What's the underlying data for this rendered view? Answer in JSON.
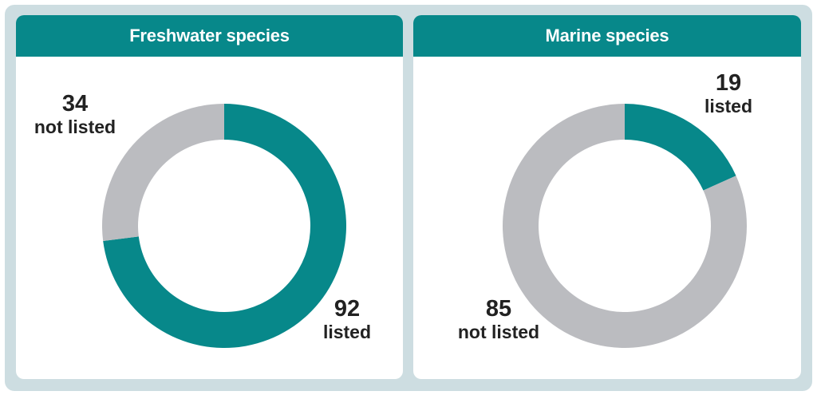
{
  "colors": {
    "frame": "#cddde1",
    "header": "#07888a",
    "listed": "#07888a",
    "not_listed": "#bbbcc0",
    "text": "#222222"
  },
  "panels": [
    {
      "title": "Freshwater species",
      "labels": [
        {
          "value": "34",
          "text": "not listed"
        },
        {
          "value": "92",
          "text": "listed"
        }
      ]
    },
    {
      "title": "Marine species",
      "labels": [
        {
          "value": "19",
          "text": "listed"
        },
        {
          "value": "85",
          "text": "not listed"
        }
      ]
    }
  ],
  "chart_data": [
    {
      "type": "pie",
      "variant": "donut",
      "title": "Freshwater species",
      "categories": [
        "listed",
        "not listed"
      ],
      "values": [
        92,
        34
      ],
      "colors": [
        "#07888a",
        "#bbbcc0"
      ]
    },
    {
      "type": "pie",
      "variant": "donut",
      "title": "Marine species",
      "categories": [
        "listed",
        "not listed"
      ],
      "values": [
        19,
        85
      ],
      "colors": [
        "#07888a",
        "#bbbcc0"
      ]
    }
  ]
}
